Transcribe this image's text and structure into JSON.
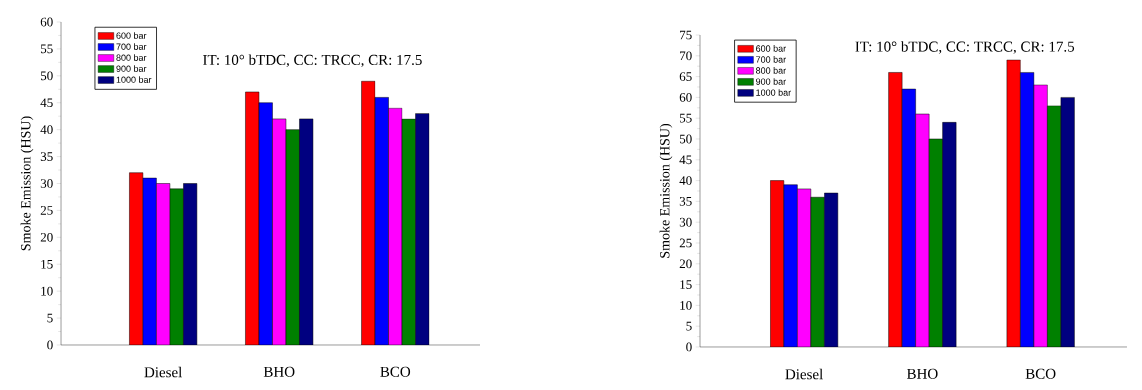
{
  "chart_data": [
    {
      "type": "bar",
      "ylabel": "Smoke Emission (HSU)",
      "annotations": [
        "IT: 10° bTDC, CC: TRCC, CR: 17.5"
      ],
      "categories": [
        "Diesel",
        "BHO",
        "BCO"
      ],
      "ylim": [
        0,
        60
      ],
      "yticks": [
        0,
        5,
        10,
        15,
        20,
        25,
        30,
        35,
        40,
        45,
        50,
        55,
        60
      ],
      "legend": "top left",
      "grid": false,
      "series": [
        {
          "name": "600 bar",
          "color": "#ff0000",
          "values": [
            32,
            47,
            49
          ]
        },
        {
          "name": "700 bar",
          "color": "#0000ff",
          "values": [
            31,
            45,
            46
          ]
        },
        {
          "name": "800 bar",
          "color": "#ff00ff",
          "values": [
            30,
            42,
            44
          ]
        },
        {
          "name": "900 bar",
          "color": "#008000",
          "values": [
            29,
            40,
            42
          ]
        },
        {
          "name": "1000 bar",
          "color": "#000080",
          "values": [
            30,
            42,
            43
          ]
        }
      ]
    },
    {
      "type": "bar",
      "ylabel": "Smoke Emission (HSU)",
      "annotations": [
        "IT: 10° bTDC, CC: TRCC, CR: 17.5"
      ],
      "categories": [
        "Diesel",
        "BHO",
        "BCO"
      ],
      "ylim": [
        0,
        75
      ],
      "yticks": [
        0,
        5,
        10,
        15,
        20,
        25,
        30,
        35,
        40,
        45,
        50,
        55,
        60,
        65,
        70,
        75
      ],
      "legend": "top left",
      "grid": false,
      "series": [
        {
          "name": "600 bar",
          "color": "#ff0000",
          "values": [
            40,
            66,
            69
          ]
        },
        {
          "name": "700 bar",
          "color": "#0000ff",
          "values": [
            39,
            62,
            66
          ]
        },
        {
          "name": "800 bar",
          "color": "#ff00ff",
          "values": [
            38,
            56,
            63
          ]
        },
        {
          "name": "900 bar",
          "color": "#008000",
          "values": [
            36,
            50,
            58
          ]
        },
        {
          "name": "1000 bar",
          "color": "#000080",
          "values": [
            37,
            54,
            60
          ]
        }
      ]
    }
  ]
}
